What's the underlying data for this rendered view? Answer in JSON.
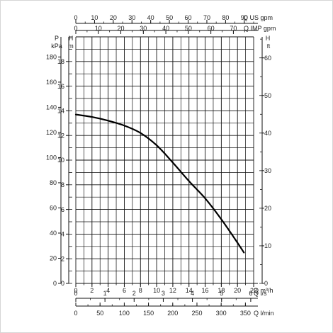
{
  "chart_data": {
    "type": "line",
    "series": [
      {
        "x": [
          0,
          2,
          4,
          6,
          8,
          10,
          12,
          14,
          16,
          18,
          20,
          20.8
        ],
        "y": [
          13.7,
          13.5,
          13.2,
          12.8,
          12.2,
          11.2,
          9.8,
          8.3,
          6.9,
          5.2,
          3.3,
          2.5
        ]
      }
    ],
    "grid": true,
    "axes": {
      "top1": {
        "label": "Q US gpm",
        "range": [
          0,
          95
        ],
        "ticks": [
          0,
          10,
          20,
          30,
          40,
          50,
          60,
          70,
          80,
          90
        ]
      },
      "top2": {
        "label": "Q IMP gpm",
        "range": [
          0,
          79
        ],
        "ticks": [
          0,
          10,
          20,
          30,
          40,
          50,
          60,
          70
        ]
      },
      "bottom1": {
        "label": "Q m³/h",
        "range": [
          0,
          22
        ],
        "ticks": [
          0,
          2,
          4,
          6,
          8,
          10,
          12,
          14,
          16,
          18,
          20,
          22
        ]
      },
      "bottom2": {
        "label": "Q l/s",
        "range": [
          0,
          6.1
        ],
        "ticks": [
          0,
          1,
          2,
          3,
          4,
          5,
          6
        ]
      },
      "bottom3": {
        "label": "Q l/min",
        "range": [
          0,
          367
        ],
        "ticks": [
          0,
          50,
          100,
          150,
          200,
          250,
          300,
          350
        ]
      },
      "left_kpa": {
        "label_top": "P",
        "label_bottom": "kPa",
        "range": [
          0,
          196
        ],
        "ticks": [
          0,
          20,
          40,
          60,
          80,
          100,
          120,
          140,
          160,
          180
        ]
      },
      "left_m": {
        "label_top": "H",
        "label_bottom": "m",
        "range": [
          0,
          20
        ],
        "ticks": [
          0,
          2,
          4,
          6,
          8,
          10,
          12,
          14,
          16,
          18
        ]
      },
      "right_ft": {
        "label_top": "H",
        "label_bottom": "ft",
        "range": [
          0,
          65.6
        ],
        "ticks": [
          0,
          10,
          20,
          30,
          40,
          50,
          60
        ]
      }
    }
  }
}
